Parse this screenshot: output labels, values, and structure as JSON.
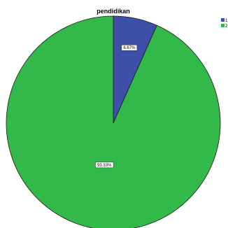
{
  "chart_data": {
    "type": "pie",
    "title": "pendidikan",
    "slices": [
      {
        "legend_label": "1",
        "value": 6.67,
        "label": "6.67%",
        "color": "#3d4fa8"
      },
      {
        "legend_label": "2",
        "value": 93.33,
        "label": "93.33%",
        "color": "#33b84a"
      }
    ],
    "start_angle_deg": 0,
    "direction": "clockwise",
    "legend_position": "top-right"
  }
}
